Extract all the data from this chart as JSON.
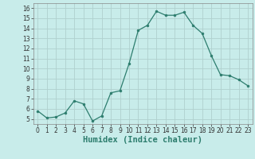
{
  "x": [
    0,
    1,
    2,
    3,
    4,
    5,
    6,
    7,
    8,
    9,
    10,
    11,
    12,
    13,
    14,
    15,
    16,
    17,
    18,
    19,
    20,
    21,
    22,
    23
  ],
  "y": [
    5.8,
    5.1,
    5.2,
    5.6,
    6.8,
    6.5,
    4.8,
    5.3,
    7.6,
    7.8,
    10.5,
    13.8,
    14.3,
    15.7,
    15.3,
    15.3,
    15.6,
    14.3,
    13.5,
    11.3,
    9.4,
    9.3,
    8.9,
    8.3
  ],
  "line_color": "#2d7d6e",
  "marker_color": "#2d7d6e",
  "bg_color": "#c8ecea",
  "grid_color": "#b0d0ce",
  "xlabel": "Humidex (Indice chaleur)",
  "ylim": [
    4.5,
    16.5
  ],
  "xlim": [
    -0.5,
    23.5
  ],
  "yticks": [
    5,
    6,
    7,
    8,
    9,
    10,
    11,
    12,
    13,
    14,
    15,
    16
  ],
  "xticks": [
    0,
    1,
    2,
    3,
    4,
    5,
    6,
    7,
    8,
    9,
    10,
    11,
    12,
    13,
    14,
    15,
    16,
    17,
    18,
    19,
    20,
    21,
    22,
    23
  ],
  "tick_fontsize": 5.5,
  "xlabel_fontsize": 7.5
}
